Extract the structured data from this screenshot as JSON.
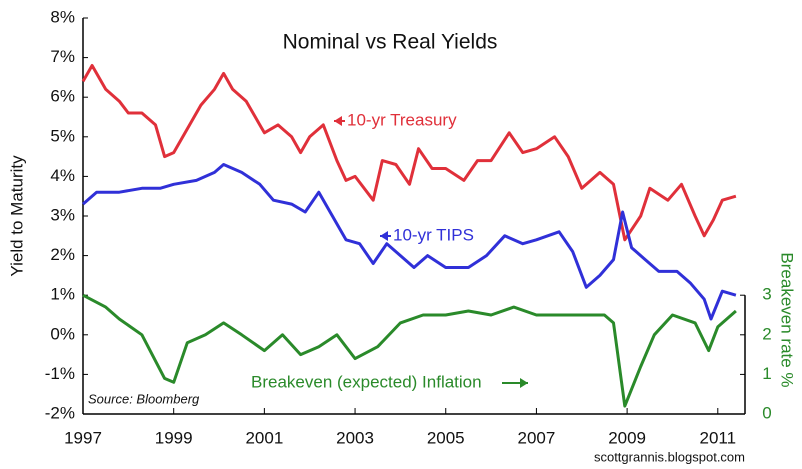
{
  "chart_data": {
    "type": "line",
    "title": "Nominal vs Real Yields",
    "ylabel": "Yield to Maturity",
    "y2label": "Breakeven  rate %",
    "source": "Source: Bloomberg",
    "credit": "scottgrannis.blogspot.com",
    "xlim": [
      1997,
      2011.6
    ],
    "xticks": [
      1997,
      1999,
      2001,
      2003,
      2005,
      2007,
      2009,
      2011
    ],
    "ylim": [
      -2,
      8
    ],
    "yticks": [
      {
        "value": -2,
        "label": "-2%"
      },
      {
        "value": -1,
        "label": "-1%"
      },
      {
        "value": 0,
        "label": "0%"
      },
      {
        "value": 1,
        "label": "1%"
      },
      {
        "value": 2,
        "label": "2%"
      },
      {
        "value": 3,
        "label": "3%"
      },
      {
        "value": 4,
        "label": "4%"
      },
      {
        "value": 5,
        "label": "5%"
      },
      {
        "value": 6,
        "label": "6%"
      },
      {
        "value": 7,
        "label": "7%"
      },
      {
        "value": 8,
        "label": "8%"
      }
    ],
    "y2lim": [
      0,
      10
    ],
    "y2ticks": [
      0,
      1,
      2,
      3
    ],
    "series": [
      {
        "name": "10-yr Treasury",
        "color": "#e0303a",
        "x": [
          1997.0,
          1997.2,
          1997.5,
          1997.8,
          1998.0,
          1998.3,
          1998.6,
          1998.8,
          1999.0,
          1999.3,
          1999.6,
          1999.9,
          2000.1,
          2000.3,
          2000.6,
          2000.9,
          2001.0,
          2001.3,
          2001.6,
          2001.8,
          2002.0,
          2002.3,
          2002.6,
          2002.8,
          2003.0,
          2003.4,
          2003.6,
          2003.9,
          2004.2,
          2004.4,
          2004.7,
          2005.0,
          2005.4,
          2005.7,
          2006.0,
          2006.4,
          2006.7,
          2007.0,
          2007.4,
          2007.7,
          2008.0,
          2008.4,
          2008.7,
          2008.95,
          2009.3,
          2009.5,
          2009.9,
          2010.2,
          2010.5,
          2010.7,
          2010.9,
          2011.1,
          2011.4
        ],
        "values": [
          6.4,
          6.8,
          6.2,
          5.9,
          5.6,
          5.6,
          5.3,
          4.5,
          4.6,
          5.2,
          5.8,
          6.2,
          6.6,
          6.2,
          5.9,
          5.3,
          5.1,
          5.3,
          5.0,
          4.6,
          5.0,
          5.3,
          4.4,
          3.9,
          4.0,
          3.4,
          4.4,
          4.3,
          3.8,
          4.7,
          4.2,
          4.2,
          3.9,
          4.4,
          4.4,
          5.1,
          4.6,
          4.7,
          5.0,
          4.5,
          3.7,
          4.1,
          3.8,
          2.4,
          3.0,
          3.7,
          3.4,
          3.8,
          3.0,
          2.5,
          2.9,
          3.4,
          3.5
        ]
      },
      {
        "name": "10-yr TIPS",
        "color": "#3030d8",
        "x": [
          1997.0,
          1997.3,
          1997.8,
          1998.3,
          1998.7,
          1999.0,
          1999.5,
          1999.9,
          2000.1,
          2000.5,
          2000.9,
          2001.2,
          2001.6,
          2001.9,
          2002.2,
          2002.5,
          2002.8,
          2003.1,
          2003.4,
          2003.7,
          2004.0,
          2004.3,
          2004.6,
          2005.0,
          2005.5,
          2005.9,
          2006.3,
          2006.7,
          2007.0,
          2007.5,
          2007.8,
          2008.1,
          2008.4,
          2008.7,
          2008.9,
          2009.1,
          2009.4,
          2009.7,
          2010.1,
          2010.4,
          2010.7,
          2010.85,
          2011.1,
          2011.4
        ],
        "values": [
          3.3,
          3.6,
          3.6,
          3.7,
          3.7,
          3.8,
          3.9,
          4.1,
          4.3,
          4.1,
          3.8,
          3.4,
          3.3,
          3.1,
          3.6,
          3.0,
          2.4,
          2.3,
          1.8,
          2.3,
          2.0,
          1.7,
          2.0,
          1.7,
          1.7,
          2.0,
          2.5,
          2.3,
          2.4,
          2.6,
          2.1,
          1.2,
          1.5,
          1.9,
          3.1,
          2.2,
          1.9,
          1.6,
          1.6,
          1.3,
          0.9,
          0.4,
          1.1,
          1.0
        ]
      },
      {
        "name": "Breakeven (expected) Inflation",
        "color": "#2a8a2a",
        "axis": "y2",
        "x": [
          1997.0,
          1997.5,
          1997.8,
          1998.3,
          1998.8,
          1999.0,
          1999.3,
          1999.7,
          2000.1,
          2000.5,
          2001.0,
          2001.4,
          2001.8,
          2002.2,
          2002.6,
          2003.0,
          2003.5,
          2004.0,
          2004.5,
          2005.0,
          2005.5,
          2006.0,
          2006.5,
          2007.0,
          2007.5,
          2008.0,
          2008.5,
          2008.7,
          2008.95,
          2009.3,
          2009.6,
          2010.0,
          2010.5,
          2010.8,
          2011.0,
          2011.4
        ],
        "values": [
          3.0,
          2.7,
          2.4,
          2.0,
          0.9,
          0.8,
          1.8,
          2.0,
          2.3,
          2.0,
          1.6,
          2.0,
          1.5,
          1.7,
          2.0,
          1.4,
          1.7,
          2.3,
          2.5,
          2.5,
          2.6,
          2.5,
          2.7,
          2.5,
          2.5,
          2.5,
          2.5,
          2.3,
          0.2,
          1.2,
          2.0,
          2.5,
          2.3,
          1.6,
          2.2,
          2.6
        ]
      }
    ]
  }
}
